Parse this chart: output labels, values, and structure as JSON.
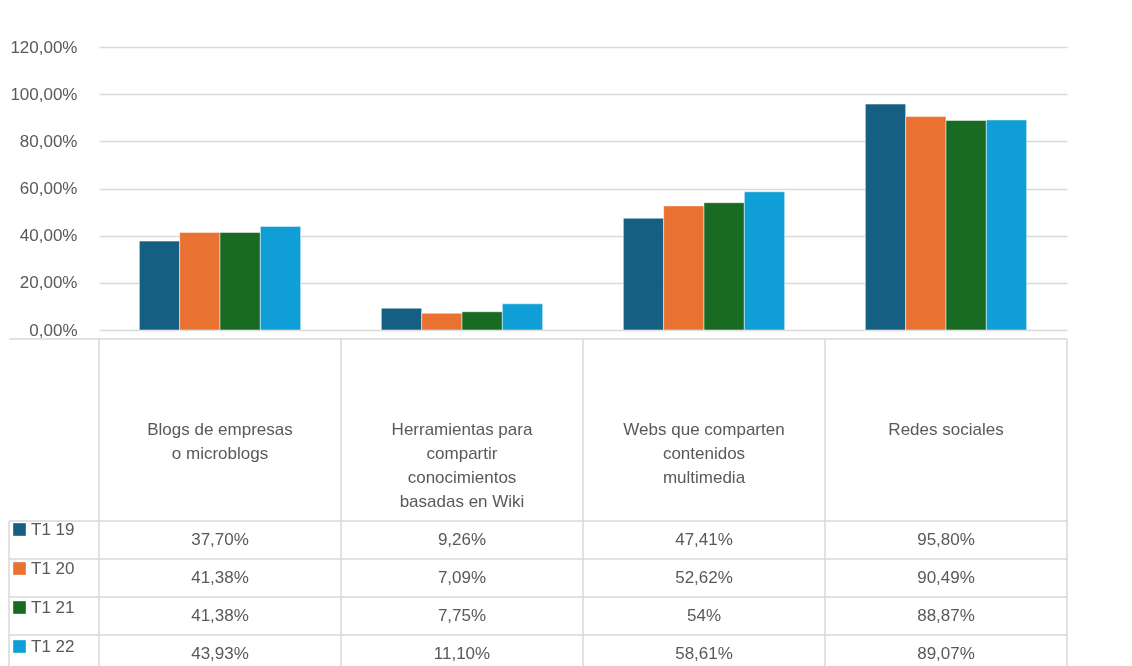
{
  "chart_data": {
    "type": "bar",
    "categories": [
      "Blogs de empresas o microblogs",
      "Herramientas para compartir conocimientos basadas en Wiki",
      "Webs que comparten contenidos multimedia",
      "Redes sociales"
    ],
    "series": [
      {
        "name": "T1 19",
        "color": "#156082",
        "values": [
          37.7,
          9.26,
          47.41,
          95.8
        ],
        "value_labels": [
          "37,70%",
          "9,26%",
          "47,41%",
          "95,80%"
        ]
      },
      {
        "name": "T1 20",
        "color": "#e97132",
        "values": [
          41.38,
          7.09,
          52.62,
          90.49
        ],
        "value_labels": [
          "41,38%",
          "7,09%",
          "52,62%",
          "90,49%"
        ]
      },
      {
        "name": "T1 21",
        "color": "#196b24",
        "values": [
          41.38,
          7.75,
          54,
          88.87
        ],
        "value_labels": [
          "41,38%",
          "7,75%",
          "54%",
          "88,87%"
        ]
      },
      {
        "name": "T1 22",
        "color": "#0f9ed5",
        "values": [
          43.93,
          11.1,
          58.61,
          89.07
        ],
        "value_labels": [
          "43,93%",
          "11,10%",
          "58,61%",
          "89,07%"
        ]
      }
    ],
    "ylim": [
      0,
      120
    ],
    "yticks": [
      {
        "value": 0,
        "label": "0,00%"
      },
      {
        "value": 20,
        "label": "20,00%"
      },
      {
        "value": 40,
        "label": "40,00%"
      },
      {
        "value": 60,
        "label": "60,00%"
      },
      {
        "value": 80,
        "label": "80,00%"
      },
      {
        "value": 100,
        "label": "100,00%"
      },
      {
        "value": 120,
        "label": "120,00%"
      }
    ],
    "grid": "y",
    "legend": "bottom left"
  }
}
